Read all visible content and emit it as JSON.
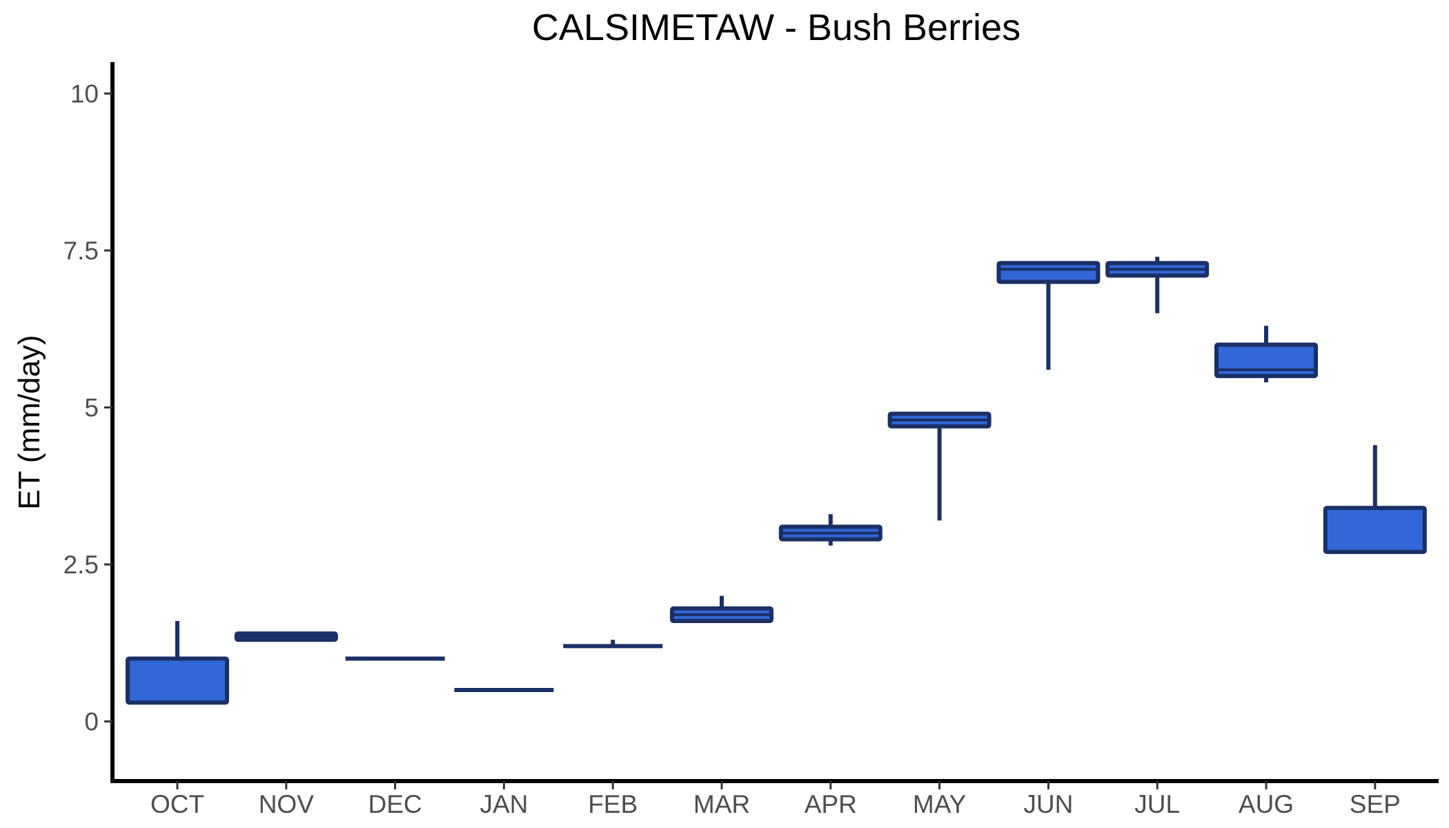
{
  "chart_data": {
    "type": "boxplot",
    "title": "CALSIMETAW - Bush Berries",
    "xlabel": "",
    "ylabel": "ET (mm/day)",
    "ylim": [
      -0.95,
      10.5
    ],
    "yticks": [
      0,
      2.5,
      5,
      7.5,
      10
    ],
    "ytick_labels": [
      "0",
      "2.5",
      "5",
      "7.5",
      "10"
    ],
    "grid": false,
    "legend": "none",
    "colors": {
      "box_fill": "#3366d6",
      "box_outline": "#1a3066",
      "axis": "#000000",
      "tick_text": "#4d4d4d"
    },
    "categories": [
      "OCT",
      "NOV",
      "DEC",
      "JAN",
      "FEB",
      "MAR",
      "APR",
      "MAY",
      "JUN",
      "JUL",
      "AUG",
      "SEP"
    ],
    "boxes": [
      {
        "month": "OCT",
        "min": 0.3,
        "q1": 0.3,
        "median": 0.3,
        "q3": 1.0,
        "max": 1.6
      },
      {
        "month": "NOV",
        "min": 1.3,
        "q1": 1.3,
        "median": 1.35,
        "q3": 1.4,
        "max": 1.4
      },
      {
        "month": "DEC",
        "min": 1.0,
        "q1": 1.0,
        "median": 1.0,
        "q3": 1.0,
        "max": 1.0
      },
      {
        "month": "JAN",
        "min": 0.5,
        "q1": 0.5,
        "median": 0.5,
        "q3": 0.5,
        "max": 0.5
      },
      {
        "month": "FEB",
        "min": 1.2,
        "q1": 1.2,
        "median": 1.2,
        "q3": 1.2,
        "max": 1.3
      },
      {
        "month": "MAR",
        "min": 1.6,
        "q1": 1.6,
        "median": 1.7,
        "q3": 1.8,
        "max": 2.0
      },
      {
        "month": "APR",
        "min": 2.8,
        "q1": 2.9,
        "median": 3.0,
        "q3": 3.1,
        "max": 3.3
      },
      {
        "month": "MAY",
        "min": 3.2,
        "q1": 4.7,
        "median": 4.8,
        "q3": 4.9,
        "max": 4.9
      },
      {
        "month": "JUN",
        "min": 5.6,
        "q1": 7.0,
        "median": 7.2,
        "q3": 7.3,
        "max": 7.3
      },
      {
        "month": "JUL",
        "min": 6.5,
        "q1": 7.1,
        "median": 7.2,
        "q3": 7.3,
        "max": 7.4
      },
      {
        "month": "AUG",
        "min": 5.4,
        "q1": 5.5,
        "median": 5.6,
        "q3": 6.0,
        "max": 6.3
      },
      {
        "month": "SEP",
        "min": 2.7,
        "q1": 2.7,
        "median": 2.7,
        "q3": 3.4,
        "max": 4.4
      }
    ]
  }
}
